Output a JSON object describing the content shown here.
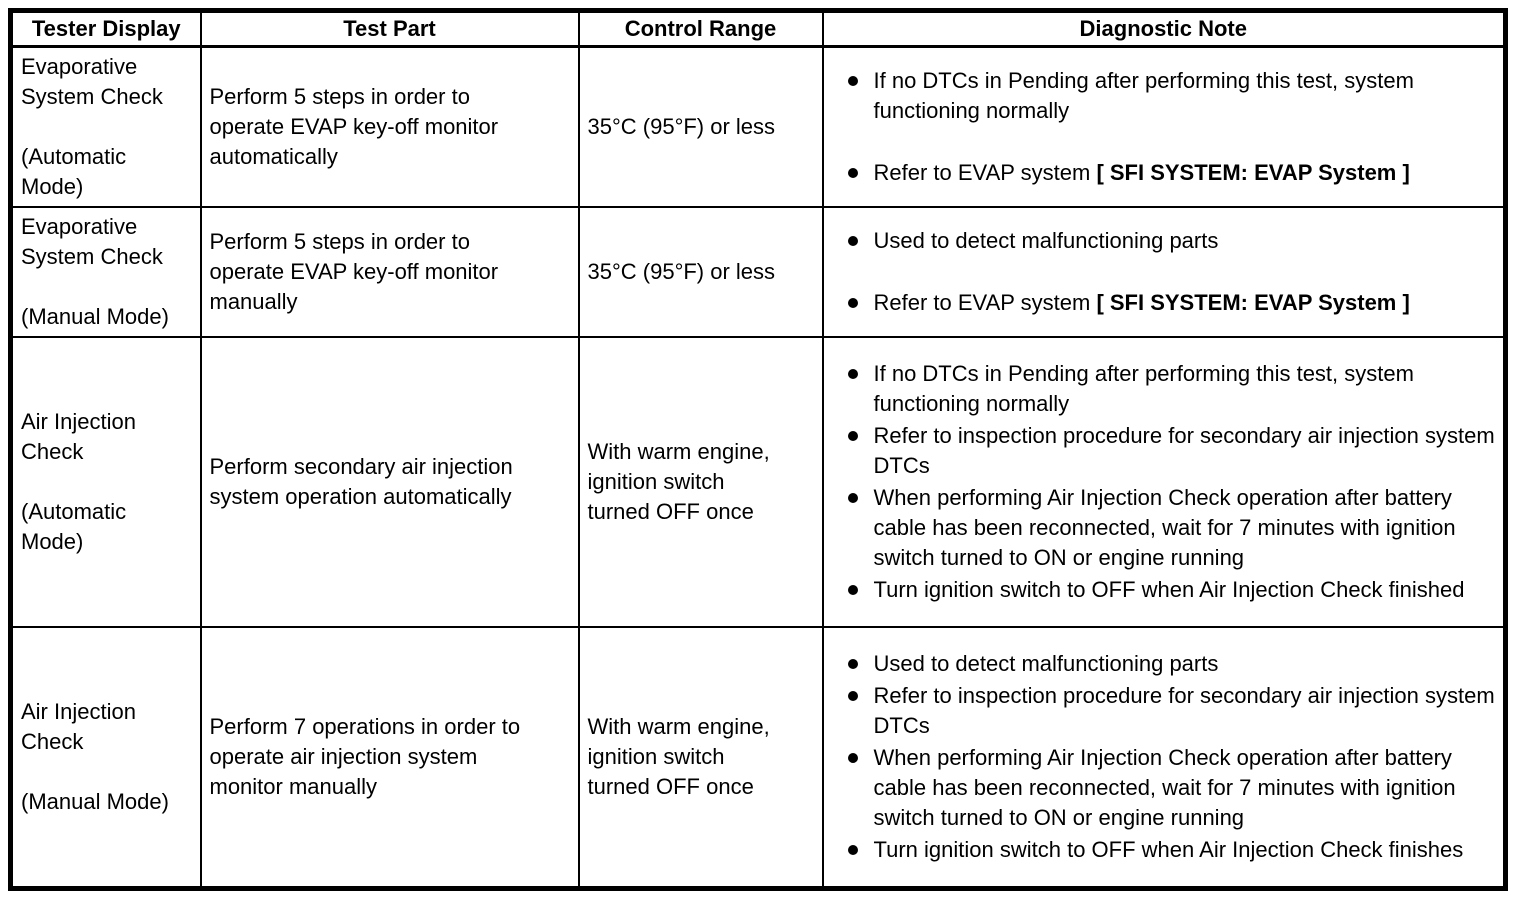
{
  "colors": {
    "background": "#ffffff",
    "text": "#000000",
    "border": "#000000"
  },
  "table": {
    "columns": [
      {
        "id": "tester_display",
        "label": "Tester Display"
      },
      {
        "id": "test_part",
        "label": "Test Part"
      },
      {
        "id": "control_range",
        "label": "Control Range"
      },
      {
        "id": "diagnostic_note",
        "label": "Diagnostic Note"
      }
    ],
    "rows": [
      {
        "tester_display": {
          "name": "Evaporative System Check",
          "mode": "(Automatic Mode)"
        },
        "test_part": "Perform 5 steps in order to operate EVAP key-off monitor automatically",
        "control_range": "35°C (95°F) or less",
        "diagnostic_notes": [
          {
            "segments": [
              {
                "text": "If no DTCs in Pending after performing this test, system functioning normally",
                "bold": false
              }
            ]
          },
          {
            "segments": [
              {
                "text": "Refer to EVAP system ",
                "bold": false
              },
              {
                "text": "[ SFI SYSTEM: EVAP System ]",
                "bold": true
              }
            ]
          }
        ]
      },
      {
        "tester_display": {
          "name": "Evaporative System Check",
          "mode": "(Manual Mode)"
        },
        "test_part": "Perform 5 steps in order to operate EVAP key-off monitor manually",
        "control_range": "35°C (95°F) or less",
        "diagnostic_notes": [
          {
            "segments": [
              {
                "text": "Used to detect malfunctioning parts",
                "bold": false
              }
            ]
          },
          {
            "segments": [
              {
                "text": "Refer to EVAP system ",
                "bold": false
              },
              {
                "text": "[ SFI SYSTEM: EVAP System ]",
                "bold": true
              }
            ]
          }
        ]
      },
      {
        "tester_display": {
          "name": "Air Injection Check",
          "mode": "(Automatic Mode)"
        },
        "test_part": "Perform secondary air injection system operation automatically",
        "control_range": "With warm engine, ignition switch turned OFF once",
        "diagnostic_notes": [
          {
            "segments": [
              {
                "text": "If no DTCs in Pending after performing this test, system functioning normally",
                "bold": false
              }
            ]
          },
          {
            "segments": [
              {
                "text": "Refer to inspection procedure for secondary air injection system DTCs",
                "bold": false
              }
            ]
          },
          {
            "segments": [
              {
                "text": "When performing Air Injection Check operation after battery cable has been reconnected, wait for 7 minutes with ignition switch turned to ON or engine running",
                "bold": false
              }
            ]
          },
          {
            "segments": [
              {
                "text": "Turn ignition switch to OFF when Air Injection Check finished",
                "bold": false
              }
            ]
          }
        ]
      },
      {
        "tester_display": {
          "name": "Air Injection Check",
          "mode": "(Manual Mode)"
        },
        "test_part": "Perform 7 operations in order to operate air injection system monitor manually",
        "control_range": "With warm engine, ignition switch turned OFF once",
        "diagnostic_notes": [
          {
            "segments": [
              {
                "text": "Used to detect malfunctioning parts",
                "bold": false
              }
            ]
          },
          {
            "segments": [
              {
                "text": "Refer to inspection procedure for secondary air injection system DTCs",
                "bold": false
              }
            ]
          },
          {
            "segments": [
              {
                "text": "When performing Air Injection Check operation after battery cable has been reconnected, wait for 7 minutes with ignition switch turned to ON or engine running",
                "bold": false
              }
            ]
          },
          {
            "segments": [
              {
                "text": "Turn ignition switch to OFF when Air Injection Check finishes",
                "bold": false
              }
            ]
          }
        ]
      }
    ]
  }
}
